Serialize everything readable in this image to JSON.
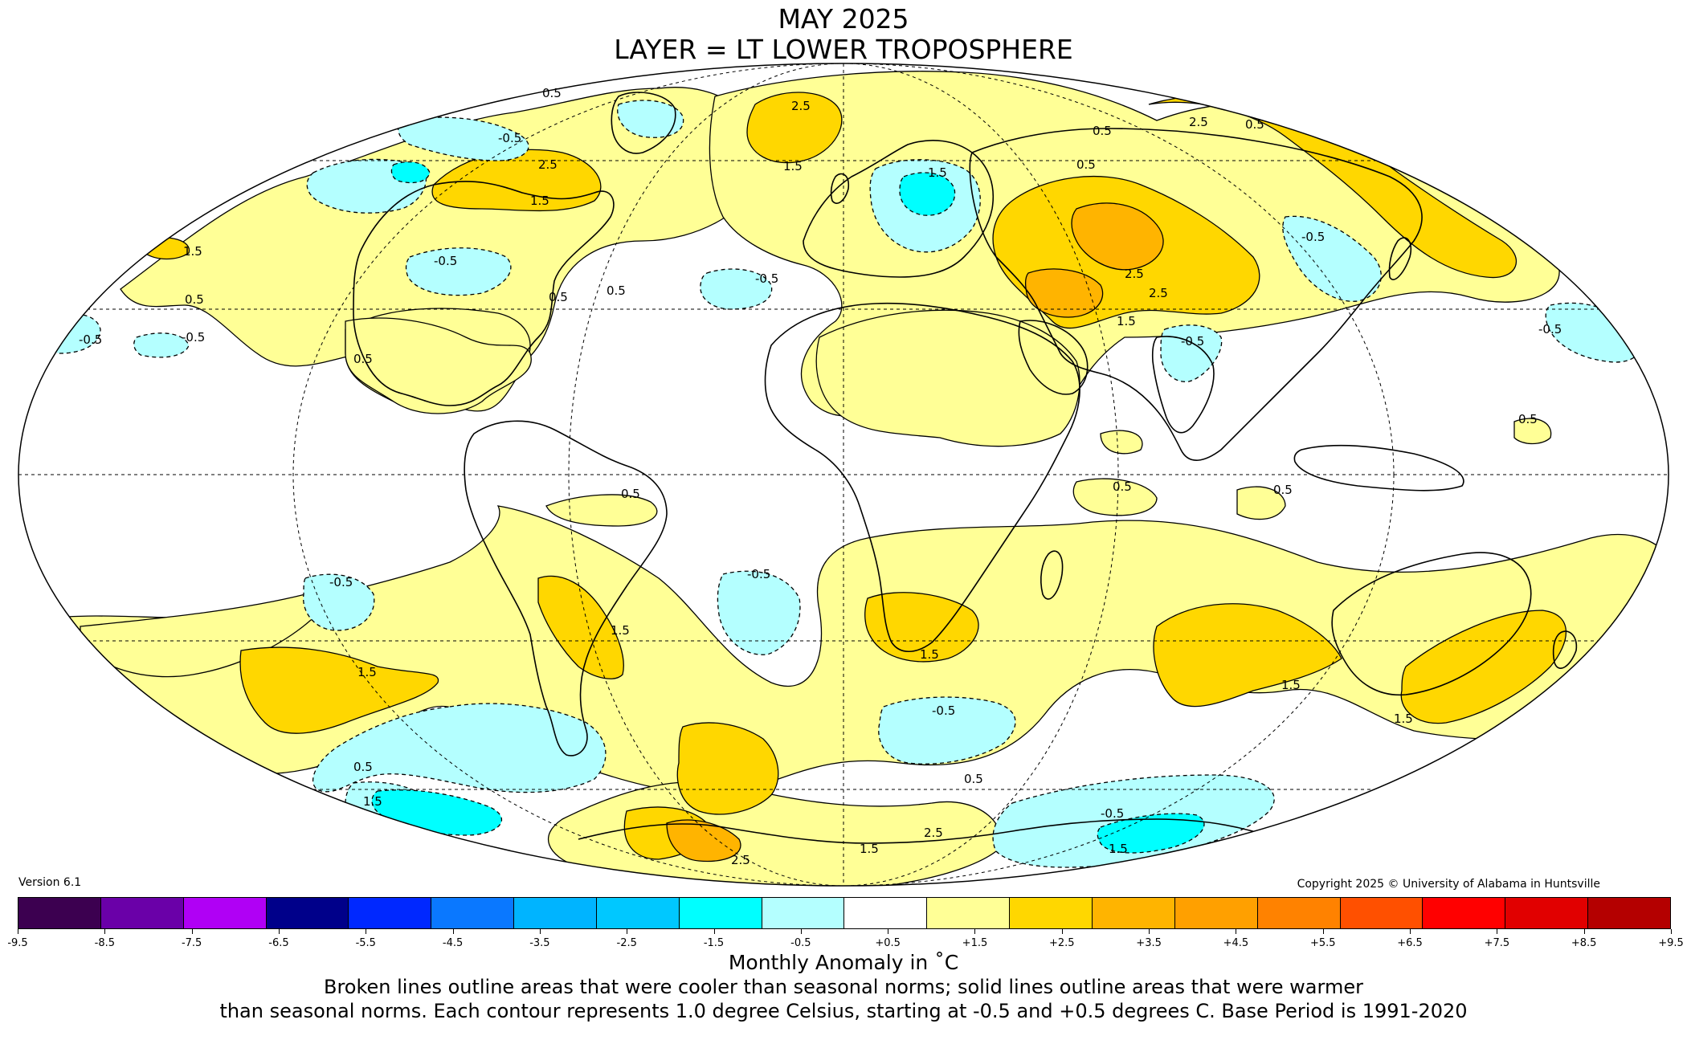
{
  "title": "MAY 2025",
  "subtitle": "LAYER = LT LOWER TROPOSPHERE",
  "version": "Version 6.1",
  "copyright": "Copyright 2025 © University of Alabama in Huntsville",
  "colorbar": {
    "label": "Monthly Anomaly in ˚C",
    "ticks": [
      "-9.5",
      "-8.5",
      "-7.5",
      "-6.5",
      "-5.5",
      "-4.5",
      "-3.5",
      "-2.5",
      "-1.5",
      "-0.5",
      "+0.5",
      "+1.5",
      "+2.5",
      "+3.5",
      "+4.5",
      "+5.5",
      "+6.5",
      "+7.5",
      "+8.5",
      "+9.5"
    ],
    "colors": [
      "#3c0050",
      "#6a00a8",
      "#b000f5",
      "#00008a",
      "#0028ff",
      "#0a78ff",
      "#00b4ff",
      "#00c8ff",
      "#00ffff",
      "#b4ffff",
      "#ffffff",
      "#ffff96",
      "#ffd700",
      "#ffb400",
      "#ffa000",
      "#ff8200",
      "#ff5000",
      "#ff0000",
      "#e10000",
      "#b40000"
    ]
  },
  "notes": {
    "line1": "Broken lines outline areas that were cooler than seasonal norms; solid lines outline areas that were warmer",
    "line2": "than seasonal norms. Each contour represents 1.0 degree Celsius, starting at -0.5 and +0.5 degrees C. Base Period is 1991-2020"
  },
  "contour_labels": [
    "-0.5",
    "-0.5",
    "-0.5",
    "-0.5",
    "-0.5",
    "-0.5",
    "-0.5",
    "-0.5",
    "-0.5",
    "-0.5",
    "-0.5",
    "-0.5",
    "0.5",
    "0.5",
    "0.5",
    "0.5",
    "0.5",
    "0.5",
    "0.5",
    "0.5",
    "0.5",
    "0.5",
    "0.5",
    "0.5",
    "0.5",
    "0.5",
    "1.5",
    "1.5",
    "1.5",
    "1.5",
    "1.5",
    "1.5",
    "1.5",
    "1.5",
    "1.5",
    "1.5",
    "1.5",
    "1.5",
    "1.5",
    "2.5",
    "2.5",
    "2.5",
    "2.5",
    "2.5",
    "2.5",
    "2.5"
  ],
  "map": {
    "projection": "Mollweide",
    "month": "May 2025",
    "layer": "lower troposphere"
  }
}
